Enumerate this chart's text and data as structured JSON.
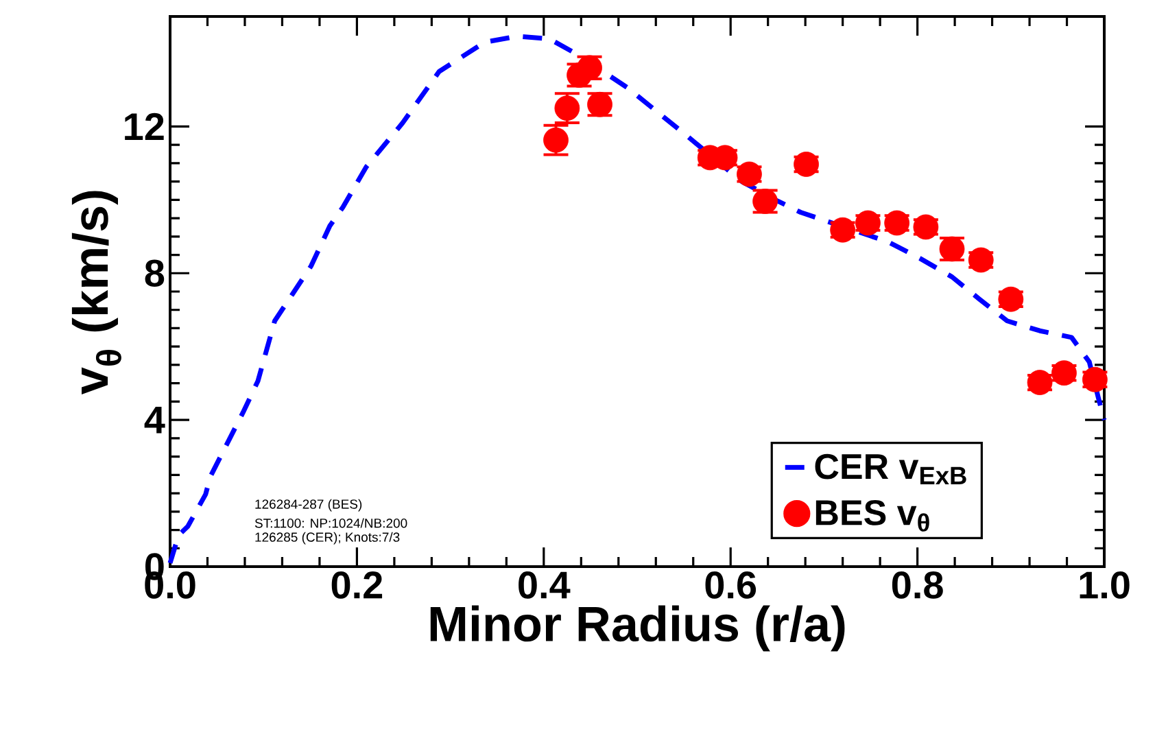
{
  "chart_data": {
    "type": "line",
    "xlabel": "Minor Radius (r/a)",
    "ylabel": "v$_{θ}$ (km/s)",
    "xlim": [
      0,
      1
    ],
    "ylim": [
      0,
      15
    ],
    "xticks": [
      {
        "value": 0,
        "label": "0.0"
      },
      {
        "value": 0.2,
        "label": "0.2"
      },
      {
        "value": 0.4,
        "label": "0.4"
      },
      {
        "value": 0.6,
        "label": "0.6"
      },
      {
        "value": 0.8,
        "label": "0.8"
      },
      {
        "value": 1,
        "label": "1.0"
      }
    ],
    "yticks": [
      0,
      4,
      8,
      12
    ],
    "legend": "bottom right",
    "series": [
      {
        "name": "CER v$_{ExB}$",
        "color": "#0000ff",
        "line_style": "dashed",
        "marker": "none",
        "x": [
          0,
          0.009,
          0.019,
          0.038,
          0.043,
          0.078,
          0.094,
          0.112,
          0.131,
          0.151,
          0.171,
          0.185,
          0.21,
          0.249,
          0.288,
          0.337,
          0.372,
          0.406,
          0.435,
          0.49,
          0.519,
          0.553,
          0.612,
          0.651,
          0.675,
          0.719,
          0.769,
          0.803,
          0.837,
          0.866,
          0.896,
          0.931,
          0.965,
          0.984,
          0.994,
          1.0
        ],
        "values": [
          0.1,
          0.85,
          1.1,
          1.97,
          2.45,
          4.2,
          5.06,
          6.7,
          7.43,
          8.2,
          9.29,
          9.8,
          10.9,
          12.1,
          13.5,
          14.3,
          14.46,
          14.39,
          13.98,
          13.05,
          12.45,
          11.75,
          10.5,
          9.96,
          9.66,
          null,
          8.85,
          8.4,
          7.9,
          7.3,
          6.7,
          6.43,
          6.25,
          5.58,
          4.57,
          4.0
        ]
      },
      {
        "name": "BES v$_{θ}$",
        "type": "scatter",
        "color": "#ff0000",
        "marker": "circle",
        "x": [
          0.413,
          0.425,
          0.438,
          0.449,
          0.46,
          0.578,
          0.594,
          0.62,
          0.637,
          0.681,
          0.72,
          0.747,
          0.778,
          0.809,
          0.837,
          0.868,
          0.9,
          0.931,
          0.957,
          0.99
        ],
        "values": [
          11.63,
          12.5,
          13.4,
          13.6,
          12.6,
          11.15,
          11.15,
          10.7,
          9.96,
          10.97,
          9.18,
          9.37,
          9.37,
          9.26,
          8.66,
          8.36,
          7.29,
          5.02,
          5.28,
          5.1
        ],
        "errors": [
          0.4,
          0.4,
          0.3,
          0.3,
          0.3,
          0.2,
          0.2,
          0.2,
          0.3,
          0.2,
          0.2,
          0.2,
          0.2,
          0.2,
          0.3,
          0.2,
          0.2,
          0.2,
          0.2,
          0.2
        ]
      }
    ],
    "annotations": [
      "126284-287 (BES)",
      "ST:1100: NP:1024/NB:200",
      "126285 (CER); Knots:7/3"
    ]
  }
}
